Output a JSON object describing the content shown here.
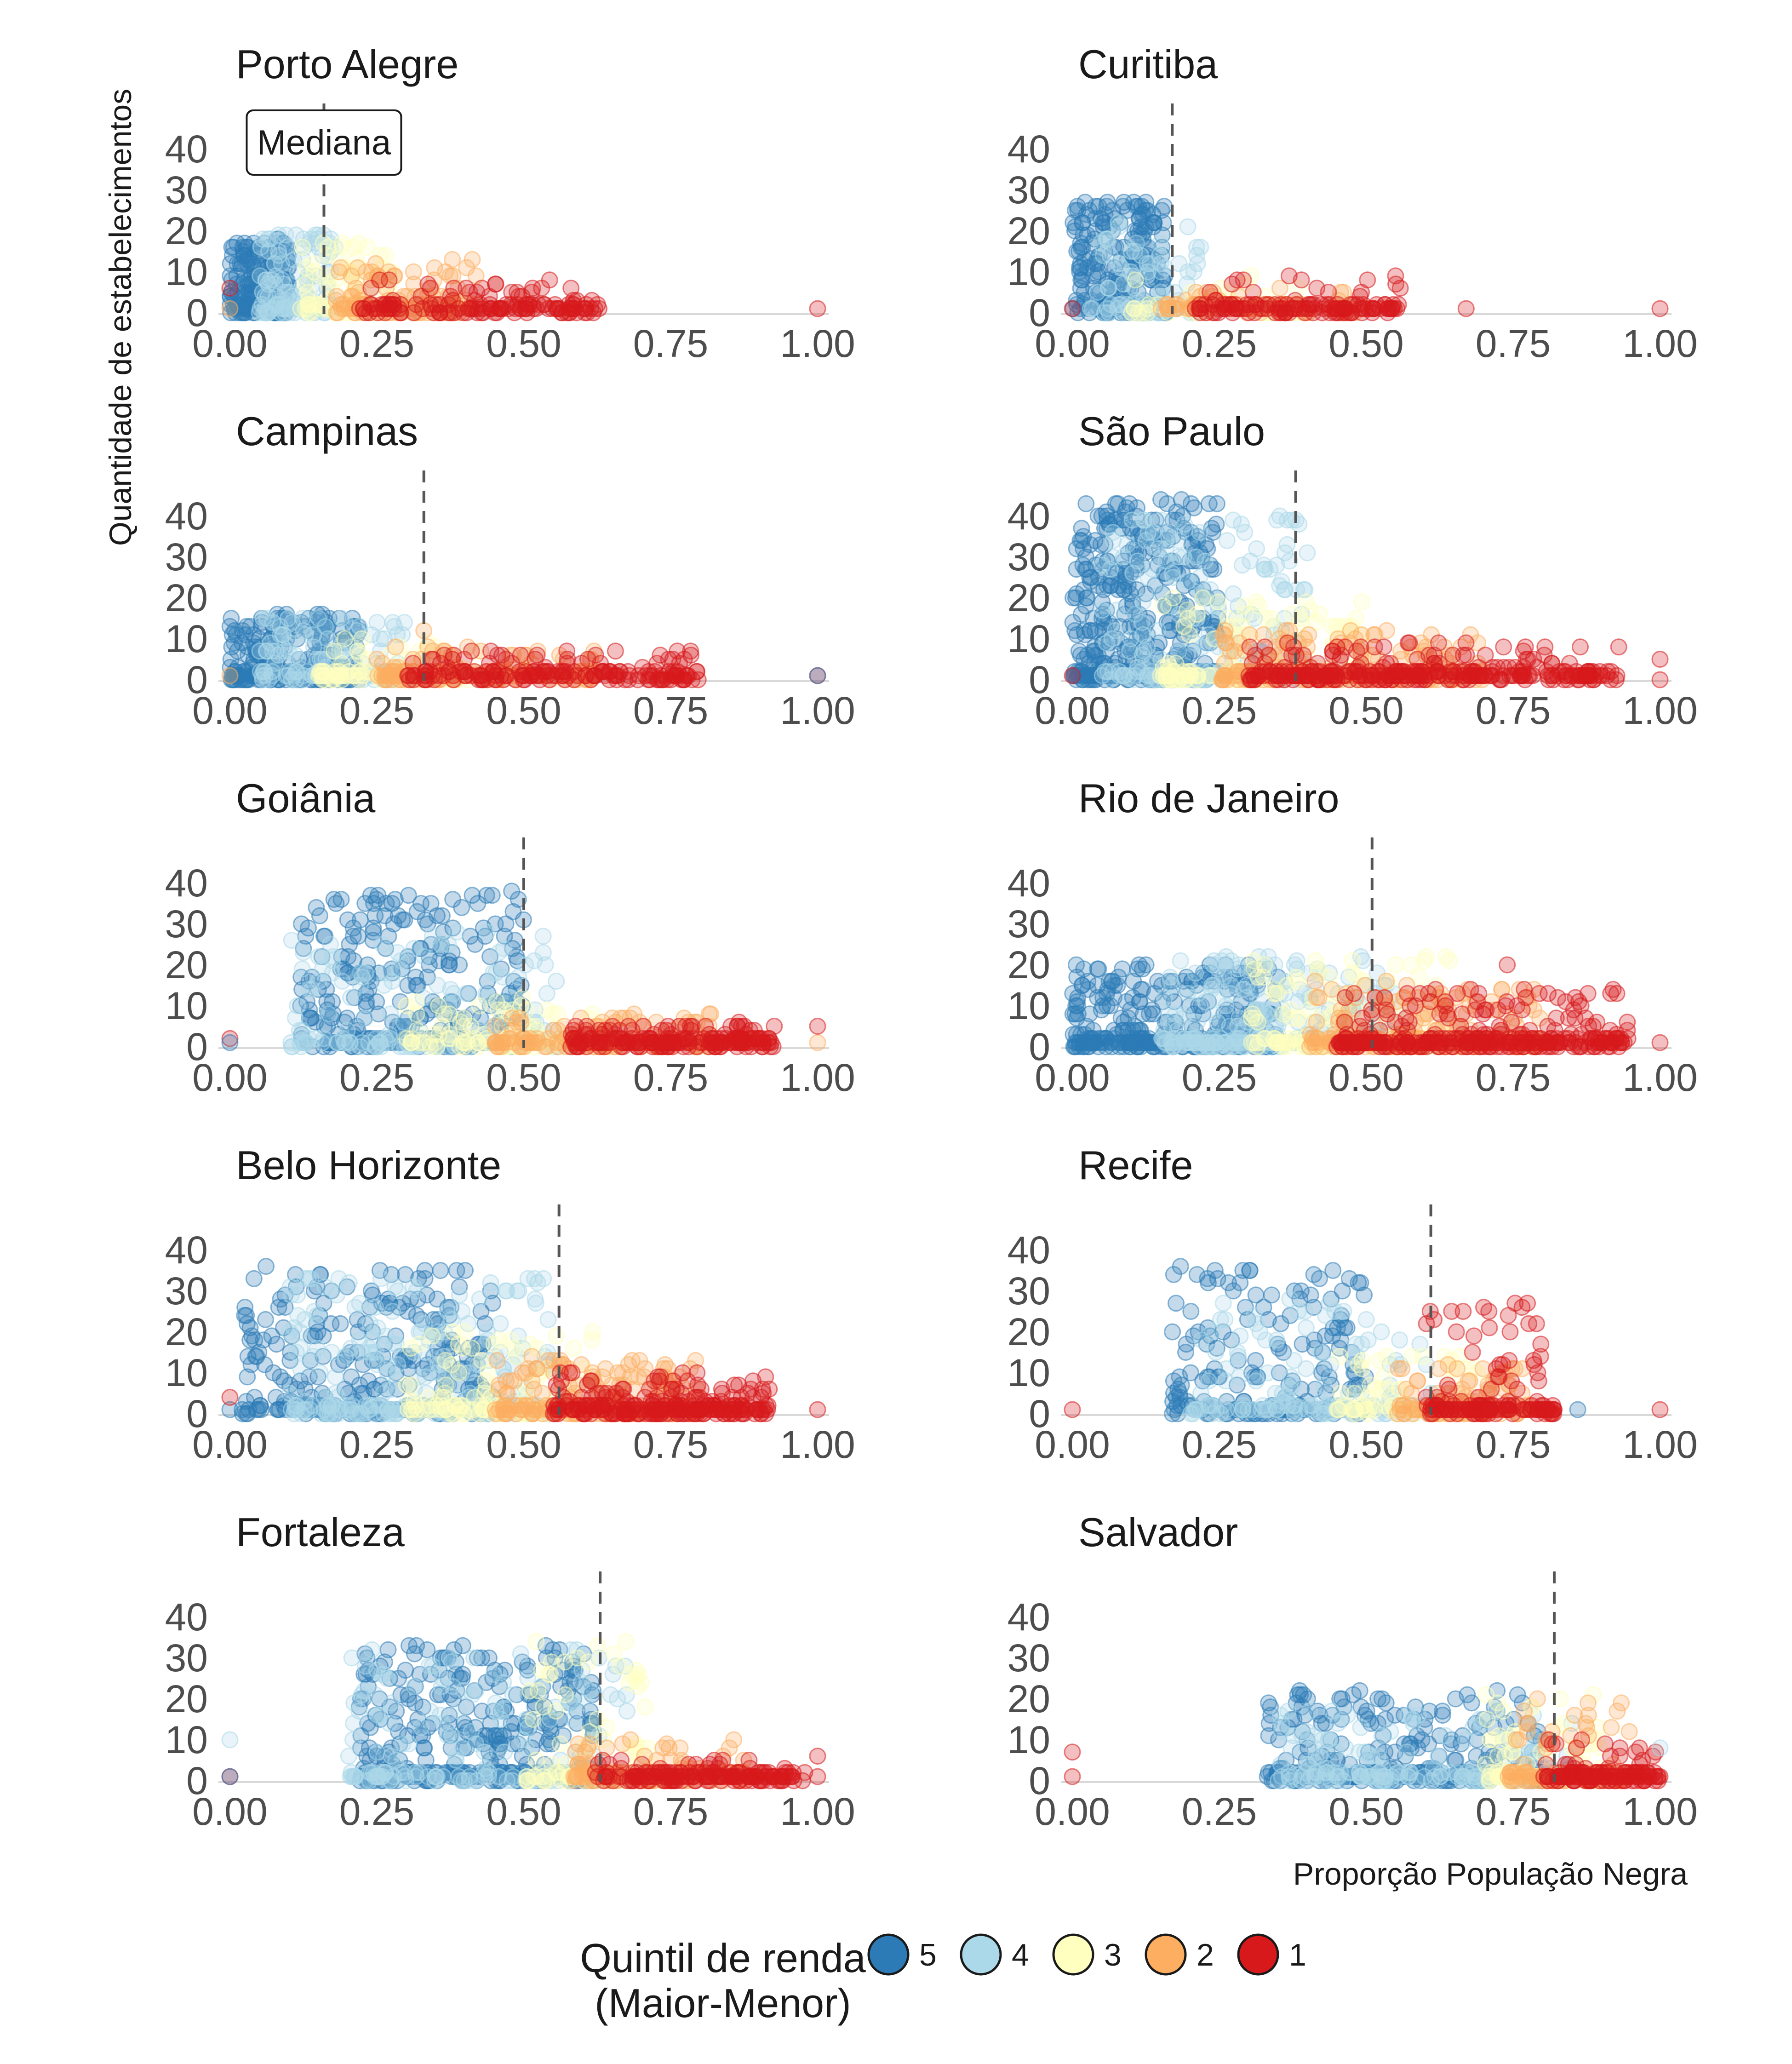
{
  "chart_data": {
    "type": "scatter",
    "xlabel": "Proporção População Negra",
    "ylabel": "Quantidade de estabelecimentos",
    "xlim": [
      0,
      1
    ],
    "ylim": [
      0,
      45
    ],
    "x_ticks": [
      "0.00",
      "0.25",
      "0.50",
      "0.75",
      "1.00"
    ],
    "y_ticks": [
      "0",
      "10",
      "20",
      "30",
      "40"
    ],
    "grid": false,
    "annotation": {
      "text": "Mediana",
      "panel": "Porto Alegre"
    },
    "legend": {
      "position": "bottom",
      "title_lines": [
        "Quintil de renda",
        "(Maior-Menor)"
      ],
      "entries": [
        {
          "label": "5",
          "color": "#2c7bb6"
        },
        {
          "label": "4",
          "color": "#abd9e9"
        },
        {
          "label": "3",
          "color": "#ffffbf"
        },
        {
          "label": "2",
          "color": "#fdae61"
        },
        {
          "label": "1",
          "color": "#d7191c"
        }
      ]
    },
    "quintile_colors": {
      "5": "#2c7bb6",
      "4": "#abd9e9",
      "3": "#ffffbf",
      "2": "#fdae61",
      "1": "#d7191c"
    },
    "panels": [
      {
        "city": "Porto Alegre",
        "median": 0.16,
        "groups": [
          {
            "q": "5",
            "n": 190,
            "xmin": 0.0,
            "xmax": 0.1,
            "ymax": 18,
            "lowfrac": 0.2
          },
          {
            "q": "4",
            "n": 110,
            "xmin": 0.05,
            "xmax": 0.18,
            "ymax": 20,
            "lowfrac": 0.3
          },
          {
            "q": "3",
            "n": 90,
            "xmin": 0.12,
            "xmax": 0.28,
            "ymax": 18,
            "lowfrac": 0.4
          },
          {
            "q": "2",
            "n": 130,
            "xmin": 0.18,
            "xmax": 0.42,
            "ymax": 13,
            "lowfrac": 0.5
          },
          {
            "q": "1",
            "n": 150,
            "xmin": 0.22,
            "xmax": 0.63,
            "ymax": 8,
            "lowfrac": 0.65
          }
        ],
        "extras": [
          {
            "q": "1",
            "x": 1.0,
            "y": 1
          },
          {
            "q": "2",
            "x": 0.0,
            "y": 1
          },
          {
            "q": "1",
            "x": 0.0,
            "y": 6
          }
        ]
      },
      {
        "city": "Curitiba",
        "median": 0.17,
        "groups": [
          {
            "q": "5",
            "n": 220,
            "xmin": 0.0,
            "xmax": 0.16,
            "ymax": 27,
            "lowfrac": 0.2
          },
          {
            "q": "4",
            "n": 90,
            "xmin": 0.03,
            "xmax": 0.22,
            "ymax": 22,
            "lowfrac": 0.45
          },
          {
            "q": "3",
            "n": 60,
            "xmin": 0.1,
            "xmax": 0.4,
            "ymax": 10,
            "lowfrac": 0.6
          },
          {
            "q": "2",
            "n": 70,
            "xmin": 0.15,
            "xmax": 0.5,
            "ymax": 6,
            "lowfrac": 0.7
          },
          {
            "q": "1",
            "n": 140,
            "xmin": 0.2,
            "xmax": 0.56,
            "ymax": 9,
            "lowfrac": 0.8
          }
        ],
        "extras": [
          {
            "q": "1",
            "x": 1.0,
            "y": 1
          },
          {
            "q": "1",
            "x": 0.67,
            "y": 1
          },
          {
            "q": "1",
            "x": 0.0,
            "y": 1
          }
        ]
      },
      {
        "city": "Campinas",
        "median": 0.33,
        "groups": [
          {
            "q": "5",
            "n": 260,
            "xmin": 0.0,
            "xmax": 0.22,
            "ymax": 16,
            "lowfrac": 0.35
          },
          {
            "q": "4",
            "n": 130,
            "xmin": 0.05,
            "xmax": 0.3,
            "ymax": 16,
            "lowfrac": 0.45
          },
          {
            "q": "3",
            "n": 100,
            "xmin": 0.15,
            "xmax": 0.42,
            "ymax": 10,
            "lowfrac": 0.55
          },
          {
            "q": "2",
            "n": 140,
            "xmin": 0.25,
            "xmax": 0.62,
            "ymax": 8,
            "lowfrac": 0.6
          },
          {
            "q": "1",
            "n": 190,
            "xmin": 0.3,
            "xmax": 0.8,
            "ymax": 7,
            "lowfrac": 0.7
          }
        ],
        "extras": [
          {
            "q": "2",
            "x": 0.33,
            "y": 12
          },
          {
            "q": "1",
            "x": 1.0,
            "y": 1
          },
          {
            "q": "5",
            "x": 1.0,
            "y": 1
          },
          {
            "q": "2",
            "x": 0.0,
            "y": 1
          }
        ]
      },
      {
        "city": "São Paulo",
        "median": 0.38,
        "groups": [
          {
            "q": "5",
            "n": 420,
            "xmin": 0.0,
            "xmax": 0.25,
            "ymax": 44,
            "lowfrac": 0.3
          },
          {
            "q": "4",
            "n": 220,
            "xmin": 0.05,
            "xmax": 0.4,
            "ymax": 40,
            "lowfrac": 0.4
          },
          {
            "q": "3",
            "n": 170,
            "xmin": 0.15,
            "xmax": 0.5,
            "ymax": 20,
            "lowfrac": 0.5
          },
          {
            "q": "2",
            "n": 220,
            "xmin": 0.25,
            "xmax": 0.7,
            "ymax": 12,
            "lowfrac": 0.6
          },
          {
            "q": "1",
            "n": 320,
            "xmin": 0.3,
            "xmax": 0.93,
            "ymax": 10,
            "lowfrac": 0.7
          }
        ],
        "extras": [
          {
            "q": "1",
            "x": 1.0,
            "y": 0
          },
          {
            "q": "1",
            "x": 1.0,
            "y": 5
          },
          {
            "q": "1",
            "x": 0.0,
            "y": 1
          }
        ]
      },
      {
        "city": "Goiânia",
        "median": 0.5,
        "groups": [
          {
            "q": "5",
            "n": 300,
            "xmin": 0.12,
            "xmax": 0.5,
            "ymax": 38,
            "lowfrac": 0.3
          },
          {
            "q": "4",
            "n": 170,
            "xmin": 0.1,
            "xmax": 0.58,
            "ymax": 28,
            "lowfrac": 0.4
          },
          {
            "q": "3",
            "n": 110,
            "xmin": 0.3,
            "xmax": 0.65,
            "ymax": 12,
            "lowfrac": 0.5
          },
          {
            "q": "2",
            "n": 150,
            "xmin": 0.45,
            "xmax": 0.82,
            "ymax": 8,
            "lowfrac": 0.6
          },
          {
            "q": "1",
            "n": 200,
            "xmin": 0.58,
            "xmax": 0.93,
            "ymax": 6,
            "lowfrac": 0.7
          }
        ],
        "extras": [
          {
            "q": "1",
            "x": 0.0,
            "y": 2
          },
          {
            "q": "5",
            "x": 0.0,
            "y": 1
          },
          {
            "q": "2",
            "x": 1.0,
            "y": 1
          },
          {
            "q": "1",
            "x": 1.0,
            "y": 5
          }
        ]
      },
      {
        "city": "Rio de Janeiro",
        "median": 0.51,
        "groups": [
          {
            "q": "5",
            "n": 380,
            "xmin": 0.0,
            "xmax": 0.35,
            "ymax": 20,
            "lowfrac": 0.45
          },
          {
            "q": "4",
            "n": 270,
            "xmin": 0.15,
            "xmax": 0.55,
            "ymax": 22,
            "lowfrac": 0.45
          },
          {
            "q": "3",
            "n": 190,
            "xmin": 0.3,
            "xmax": 0.65,
            "ymax": 22,
            "lowfrac": 0.5
          },
          {
            "q": "2",
            "n": 240,
            "xmin": 0.4,
            "xmax": 0.8,
            "ymax": 16,
            "lowfrac": 0.55
          },
          {
            "q": "1",
            "n": 330,
            "xmin": 0.45,
            "xmax": 0.95,
            "ymax": 14,
            "lowfrac": 0.65
          }
        ],
        "extras": [
          {
            "q": "1",
            "x": 1.0,
            "y": 1
          },
          {
            "q": "1",
            "x": 0.74,
            "y": 20
          }
        ]
      },
      {
        "city": "Belo Horizonte",
        "median": 0.56,
        "groups": [
          {
            "q": "5",
            "n": 300,
            "xmin": 0.02,
            "xmax": 0.45,
            "ymax": 36,
            "lowfrac": 0.35
          },
          {
            "q": "4",
            "n": 240,
            "xmin": 0.1,
            "xmax": 0.55,
            "ymax": 34,
            "lowfrac": 0.4
          },
          {
            "q": "3",
            "n": 140,
            "xmin": 0.3,
            "xmax": 0.62,
            "ymax": 20,
            "lowfrac": 0.5
          },
          {
            "q": "2",
            "n": 190,
            "xmin": 0.45,
            "xmax": 0.8,
            "ymax": 14,
            "lowfrac": 0.55
          },
          {
            "q": "1",
            "n": 250,
            "xmin": 0.55,
            "xmax": 0.92,
            "ymax": 11,
            "lowfrac": 0.65
          }
        ],
        "extras": [
          {
            "q": "1",
            "x": 1.0,
            "y": 1
          },
          {
            "q": "5",
            "x": 0.0,
            "y": 1
          },
          {
            "q": "1",
            "x": 0.0,
            "y": 4
          }
        ]
      },
      {
        "city": "Recife",
        "median": 0.61,
        "groups": [
          {
            "q": "5",
            "n": 200,
            "xmin": 0.17,
            "xmax": 0.5,
            "ymax": 36,
            "lowfrac": 0.4
          },
          {
            "q": "4",
            "n": 150,
            "xmin": 0.2,
            "xmax": 0.62,
            "ymax": 28,
            "lowfrac": 0.45
          },
          {
            "q": "3",
            "n": 80,
            "xmin": 0.45,
            "xmax": 0.7,
            "ymax": 16,
            "lowfrac": 0.55
          },
          {
            "q": "2",
            "n": 110,
            "xmin": 0.55,
            "xmax": 0.78,
            "ymax": 12,
            "lowfrac": 0.6
          },
          {
            "q": "1",
            "n": 150,
            "xmin": 0.6,
            "xmax": 0.82,
            "ymax": 27,
            "lowfrac": 0.6
          }
        ],
        "extras": [
          {
            "q": "1",
            "x": 0.0,
            "y": 1
          },
          {
            "q": "1",
            "x": 1.0,
            "y": 1
          },
          {
            "q": "5",
            "x": 0.86,
            "y": 1
          }
        ]
      },
      {
        "city": "Fortaleza",
        "median": 0.63,
        "groups": [
          {
            "q": "5",
            "n": 360,
            "xmin": 0.22,
            "xmax": 0.62,
            "ymax": 33,
            "lowfrac": 0.35
          },
          {
            "q": "4",
            "n": 170,
            "xmin": 0.2,
            "xmax": 0.68,
            "ymax": 32,
            "lowfrac": 0.4
          },
          {
            "q": "3",
            "n": 110,
            "xmin": 0.5,
            "xmax": 0.72,
            "ymax": 34,
            "lowfrac": 0.5
          },
          {
            "q": "2",
            "n": 130,
            "xmin": 0.58,
            "xmax": 0.88,
            "ymax": 10,
            "lowfrac": 0.6
          },
          {
            "q": "1",
            "n": 170,
            "xmin": 0.62,
            "xmax": 0.98,
            "ymax": 5,
            "lowfrac": 0.75
          }
        ],
        "extras": [
          {
            "q": "4",
            "x": 0.0,
            "y": 10
          },
          {
            "q": "1",
            "x": 0.0,
            "y": 1
          },
          {
            "q": "5",
            "x": 0.0,
            "y": 1
          },
          {
            "q": "1",
            "x": 1.0,
            "y": 1
          },
          {
            "q": "1",
            "x": 1.0,
            "y": 6
          }
        ]
      },
      {
        "city": "Salvador",
        "median": 0.82,
        "groups": [
          {
            "q": "5",
            "n": 320,
            "xmin": 0.33,
            "xmax": 0.8,
            "ymax": 22,
            "lowfrac": 0.5
          },
          {
            "q": "4",
            "n": 180,
            "xmin": 0.35,
            "xmax": 0.86,
            "ymax": 18,
            "lowfrac": 0.5
          },
          {
            "q": "3",
            "n": 90,
            "xmin": 0.7,
            "xmax": 0.9,
            "ymax": 22,
            "lowfrac": 0.55
          },
          {
            "q": "2",
            "n": 110,
            "xmin": 0.74,
            "xmax": 0.95,
            "ymax": 20,
            "lowfrac": 0.65
          },
          {
            "q": "1",
            "n": 140,
            "xmin": 0.8,
            "xmax": 1.0,
            "ymax": 10,
            "lowfrac": 0.7
          }
        ],
        "extras": [
          {
            "q": "1",
            "x": 0.0,
            "y": 1
          },
          {
            "q": "1",
            "x": 0.0,
            "y": 7
          },
          {
            "q": "4",
            "x": 1.0,
            "y": 8
          },
          {
            "q": "1",
            "x": 1.0,
            "y": 1
          }
        ]
      }
    ]
  }
}
